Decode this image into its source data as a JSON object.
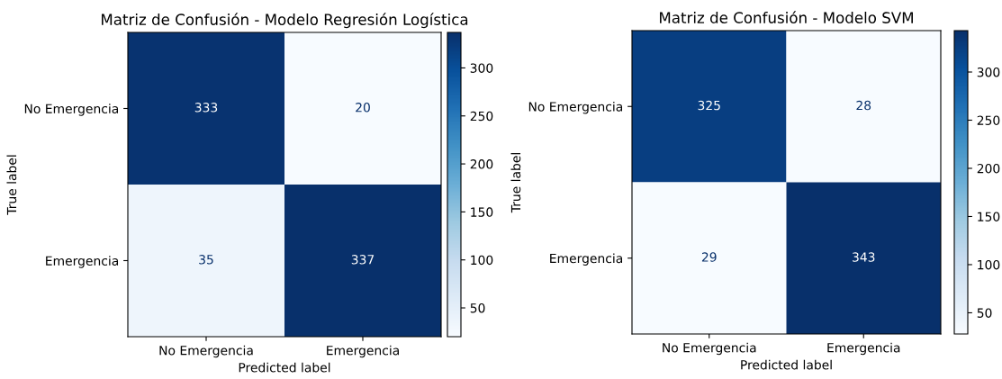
{
  "chart_data": [
    {
      "type": "heatmap",
      "title": "Matriz de Confusión - Modelo Regresión Logística",
      "xlabel": "Predicted label",
      "ylabel": "True label",
      "categories": [
        "No Emergencia",
        "Emergencia"
      ],
      "y_categories": [
        "No Emergencia",
        "Emergencia"
      ],
      "cells": [
        [
          333,
          20
        ],
        [
          35,
          337
        ]
      ],
      "data_labels": true,
      "clim": [
        20,
        337
      ],
      "cticks": [
        50,
        100,
        150,
        200,
        250,
        300
      ]
    },
    {
      "type": "heatmap",
      "title": "Matriz de Confusión - Modelo SVM",
      "xlabel": "Predicted label",
      "ylabel": "True label",
      "categories": [
        "No Emergencia",
        "Emergencia"
      ],
      "y_categories": [
        "No Emergencia",
        "Emergencia"
      ],
      "cells": [
        [
          325,
          28
        ],
        [
          29,
          343
        ]
      ],
      "data_labels": true,
      "clim": [
        28,
        343
      ],
      "cticks": [
        50,
        100,
        150,
        200,
        250,
        300
      ]
    }
  ]
}
